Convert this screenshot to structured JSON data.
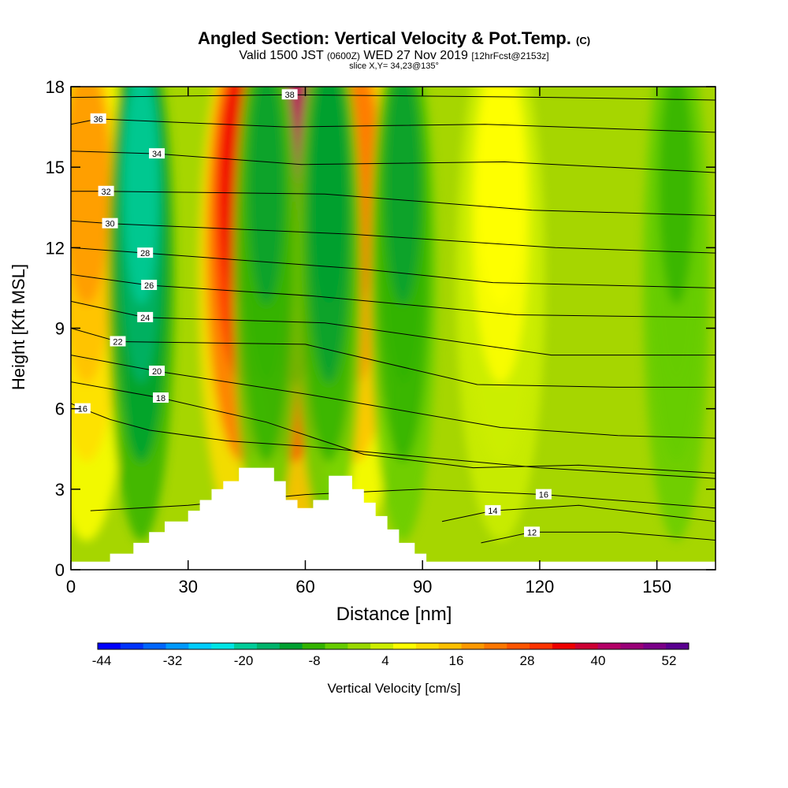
{
  "title": {
    "main": "Angled Section: Vertical Velocity & Pot.Temp.",
    "copyright": "(C)",
    "valid_prefix": "Valid 1500 JST",
    "valid_utc": "(0600Z)",
    "valid_date": "WED 27 Nov 2019",
    "forecast": "[12hrFcst@2153z]",
    "slice": "slice X,Y= 34,23@135°"
  },
  "chart_data": {
    "type": "heatmap",
    "title": "Angled Section: Vertical Velocity & Pot.Temp.",
    "xlabel": "Distance [nm]",
    "ylabel": "Height [Kft MSL]",
    "xlim": [
      0,
      165
    ],
    "ylim": [
      0,
      18
    ],
    "xticks": [
      0,
      30,
      60,
      90,
      120,
      150
    ],
    "yticks": [
      0,
      3,
      6,
      9,
      12,
      15,
      18
    ],
    "colorbar": {
      "label": "Vertical Velocity [cm/s]",
      "ticks": [
        -44,
        -32,
        -20,
        -8,
        4,
        16,
        28,
        40,
        52
      ],
      "colors": [
        "#0000ff",
        "#0033ff",
        "#0066ff",
        "#0099ff",
        "#00ccff",
        "#00e5e5",
        "#00cc99",
        "#00b36b",
        "#00a030",
        "#33b300",
        "#66cc00",
        "#99d900",
        "#ccee00",
        "#ffff00",
        "#ffdd00",
        "#ffc000",
        "#ff9900",
        "#ff7700",
        "#ff5500",
        "#ff3300",
        "#ee0000",
        "#cc0033",
        "#b30066",
        "#990077",
        "#7a0088",
        "#5a0090"
      ]
    },
    "background_value_range_cm_s": [
      -8,
      16
    ],
    "updraft_columns": [
      {
        "x_nm": 44,
        "peak_cm_s": 36
      },
      {
        "x_nm": 57,
        "peak_cm_s": 44
      },
      {
        "x_nm": 73,
        "peak_cm_s": 24
      },
      {
        "x_nm": 4,
        "peak_cm_s": 20
      },
      {
        "x_nm": 110,
        "peak_cm_s": 8
      }
    ],
    "downdraft_columns": [
      {
        "x_nm": 18,
        "peak_cm_s": -20
      },
      {
        "x_nm": 50,
        "peak_cm_s": -10
      },
      {
        "x_nm": 66,
        "peak_cm_s": -12
      },
      {
        "x_nm": 85,
        "peak_cm_s": -10
      },
      {
        "x_nm": 155,
        "peak_cm_s": -6
      }
    ],
    "terrain_profile_kft": [
      [
        0,
        0.3
      ],
      [
        10,
        0.3
      ],
      [
        10,
        0.6
      ],
      [
        16,
        0.6
      ],
      [
        16,
        1.0
      ],
      [
        20,
        1.0
      ],
      [
        20,
        1.4
      ],
      [
        24,
        1.4
      ],
      [
        24,
        1.8
      ],
      [
        30,
        1.8
      ],
      [
        30,
        2.2
      ],
      [
        33,
        2.2
      ],
      [
        33,
        2.6
      ],
      [
        36,
        2.6
      ],
      [
        36,
        3.0
      ],
      [
        39,
        3.0
      ],
      [
        39,
        3.3
      ],
      [
        43,
        3.3
      ],
      [
        43,
        3.8
      ],
      [
        52,
        3.8
      ],
      [
        52,
        3.3
      ],
      [
        55,
        3.3
      ],
      [
        55,
        2.6
      ],
      [
        58,
        2.6
      ],
      [
        58,
        2.3
      ],
      [
        62,
        2.3
      ],
      [
        62,
        2.6
      ],
      [
        66,
        2.6
      ],
      [
        66,
        3.5
      ],
      [
        72,
        3.5
      ],
      [
        72,
        3.0
      ],
      [
        75,
        3.0
      ],
      [
        75,
        2.5
      ],
      [
        78,
        2.5
      ],
      [
        78,
        2.0
      ],
      [
        81,
        2.0
      ],
      [
        81,
        1.5
      ],
      [
        84,
        1.5
      ],
      [
        84,
        1.0
      ],
      [
        88,
        1.0
      ],
      [
        88,
        0.6
      ],
      [
        91,
        0.6
      ],
      [
        91,
        0.3
      ],
      [
        165,
        0.3
      ]
    ],
    "isentropes": [
      {
        "theta": 12,
        "label_at": [
          118,
          1.4
        ],
        "pts": [
          [
            105,
            1.0
          ],
          [
            118,
            1.4
          ],
          [
            140,
            1.4
          ],
          [
            165,
            1.1
          ]
        ]
      },
      {
        "theta": 14,
        "label_at": [
          108,
          2.2
        ],
        "pts": [
          [
            95,
            1.8
          ],
          [
            108,
            2.2
          ],
          [
            130,
            2.4
          ],
          [
            165,
            1.8
          ]
        ]
      },
      {
        "theta": 16,
        "label_at": [
          121,
          2.8
        ],
        "pts": [
          [
            5,
            2.2
          ],
          [
            30,
            2.4
          ],
          [
            60,
            2.8
          ],
          [
            90,
            3.0
          ],
          [
            121,
            2.8
          ],
          [
            165,
            2.3
          ]
        ]
      },
      {
        "theta": 16,
        "label_at": [
          3,
          6.0
        ],
        "pts": [
          [
            0,
            6.2
          ],
          [
            3,
            6.0
          ],
          [
            10,
            5.6
          ],
          [
            20,
            5.2
          ],
          [
            40,
            4.8
          ],
          [
            60,
            4.6
          ],
          [
            90,
            4.2
          ],
          [
            120,
            3.8
          ],
          [
            165,
            3.4
          ]
        ]
      },
      {
        "theta": 18,
        "label_at": [
          23,
          6.4
        ],
        "pts": [
          [
            0,
            7.0
          ],
          [
            23,
            6.4
          ],
          [
            50,
            5.5
          ],
          [
            75,
            4.3
          ],
          [
            103,
            3.8
          ],
          [
            130,
            3.9
          ],
          [
            165,
            3.6
          ]
        ]
      },
      {
        "theta": 20,
        "label_at": [
          22,
          7.4
        ],
        "pts": [
          [
            0,
            8.0
          ],
          [
            22,
            7.4
          ],
          [
            62,
            6.5
          ],
          [
            110,
            5.3
          ],
          [
            140,
            5.0
          ],
          [
            165,
            4.9
          ]
        ]
      },
      {
        "theta": 22,
        "label_at": [
          12,
          8.5
        ],
        "pts": [
          [
            0,
            9.0
          ],
          [
            12,
            8.5
          ],
          [
            60,
            8.4
          ],
          [
            104,
            6.9
          ],
          [
            140,
            6.8
          ],
          [
            165,
            6.8
          ]
        ]
      },
      {
        "theta": 24,
        "label_at": [
          19,
          9.4
        ],
        "pts": [
          [
            0,
            10.0
          ],
          [
            19,
            9.4
          ],
          [
            65,
            9.2
          ],
          [
            123,
            8.0
          ],
          [
            165,
            8.0
          ]
        ]
      },
      {
        "theta": 26,
        "label_at": [
          20,
          10.6
        ],
        "pts": [
          [
            0,
            11.0
          ],
          [
            20,
            10.6
          ],
          [
            62,
            10.2
          ],
          [
            114,
            9.5
          ],
          [
            165,
            9.4
          ]
        ]
      },
      {
        "theta": 28,
        "label_at": [
          19,
          11.8
        ],
        "pts": [
          [
            0,
            12.0
          ],
          [
            19,
            11.8
          ],
          [
            75,
            11.2
          ],
          [
            108,
            10.7
          ],
          [
            165,
            10.5
          ]
        ]
      },
      {
        "theta": 30,
        "label_at": [
          10,
          12.9
        ],
        "pts": [
          [
            0,
            13.0
          ],
          [
            10,
            12.9
          ],
          [
            72,
            12.5
          ],
          [
            124,
            12.0
          ],
          [
            165,
            11.8
          ]
        ]
      },
      {
        "theta": 32,
        "label_at": [
          9,
          14.1
        ],
        "pts": [
          [
            0,
            14.1
          ],
          [
            9,
            14.1
          ],
          [
            65,
            14.0
          ],
          [
            118,
            13.4
          ],
          [
            165,
            13.2
          ]
        ]
      },
      {
        "theta": 34,
        "label_at": [
          22,
          15.5
        ],
        "pts": [
          [
            0,
            15.6
          ],
          [
            22,
            15.5
          ],
          [
            59,
            15.1
          ],
          [
            111,
            15.2
          ],
          [
            165,
            14.8
          ]
        ]
      },
      {
        "theta": 36,
        "label_at": [
          7,
          16.8
        ],
        "pts": [
          [
            0,
            16.6
          ],
          [
            7,
            16.8
          ],
          [
            55,
            16.5
          ],
          [
            106,
            16.6
          ],
          [
            165,
            16.3
          ]
        ]
      },
      {
        "theta": 38,
        "label_at": [
          56,
          17.7
        ],
        "pts": [
          [
            0,
            17.6
          ],
          [
            56,
            17.7
          ],
          [
            123,
            17.6
          ],
          [
            165,
            17.5
          ]
        ]
      }
    ]
  }
}
